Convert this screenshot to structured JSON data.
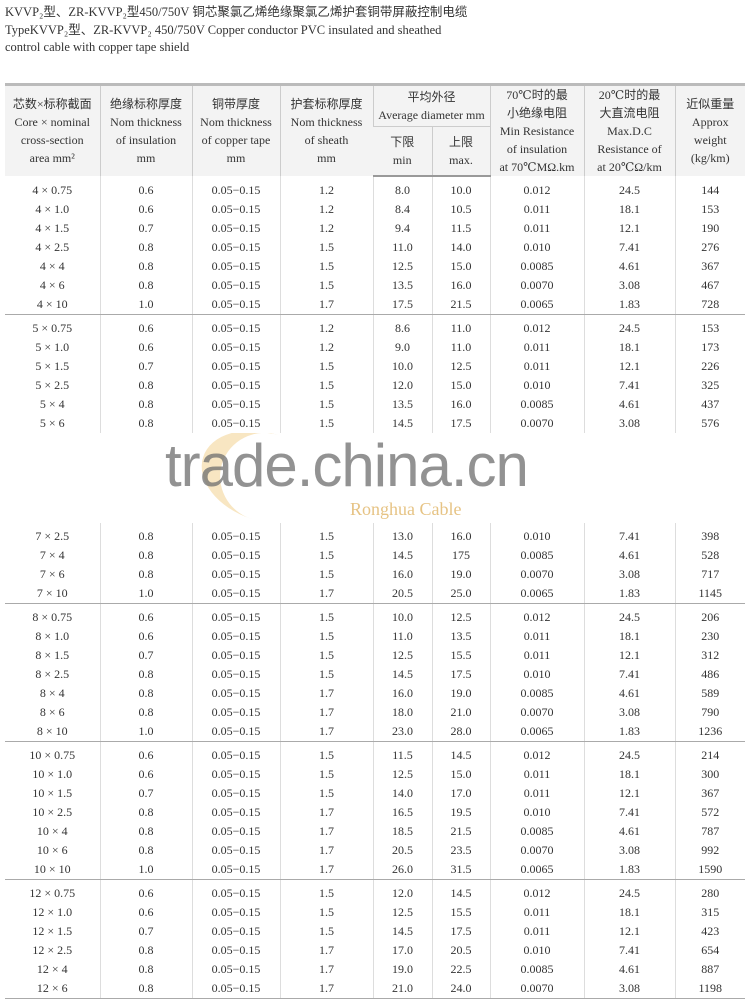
{
  "title_lines": [
    "KVVP₂型、ZR-KVVP₂型450/750V 铜芯聚氯乙烯绝缘聚氯乙烯护套铜带屏蔽控制电缆",
    "TypeKVVP₂型、ZR-KVVP₂ 450/750V Copper conductor PVC insulated and sheathed",
    "control cable with copper tape shield"
  ],
  "headers": {
    "core": [
      "芯数×标称截面",
      "Core × nominal",
      "cross-section",
      "area mm²"
    ],
    "insulation": [
      "绝缘标称厚度",
      "Nom thickness",
      "of insulation",
      "mm"
    ],
    "tape": [
      "铜带厚度",
      "Nom thickness",
      "of copper tape",
      "mm"
    ],
    "sheath": [
      "护套标称厚度",
      "Nom thickness",
      "of sheath",
      "mm"
    ],
    "diameter": [
      "平均外径",
      "Average diameter mm"
    ],
    "min": [
      "下限",
      "min"
    ],
    "max": [
      "上限",
      "max."
    ],
    "resistance_ins": [
      "70℃时的最",
      "小绝缘电阻",
      "Min Resistance",
      "of insulation",
      "at 70℃MΩ.km"
    ],
    "resistance_dc": [
      "20℃时的最",
      "大直流电阻",
      "Max.D.C",
      "Resistance of",
      "at 20℃Ω/km"
    ],
    "weight": [
      "近似重量",
      "Approx",
      "weight",
      "(kg/km)"
    ]
  },
  "groups": [
    [
      [
        "4 × 0.75",
        "0.6",
        "0.05−0.15",
        "1.2",
        "8.0",
        "10.0",
        "0.012",
        "24.5",
        "144"
      ],
      [
        "4 × 1.0",
        "0.6",
        "0.05−0.15",
        "1.2",
        "8.4",
        "10.5",
        "0.011",
        "18.1",
        "153"
      ],
      [
        "4 × 1.5",
        "0.7",
        "0.05−0.15",
        "1.2",
        "9.4",
        "11.5",
        "0.011",
        "12.1",
        "190"
      ],
      [
        "4 × 2.5",
        "0.8",
        "0.05−0.15",
        "1.5",
        "11.0",
        "14.0",
        "0.010",
        "7.41",
        "276"
      ],
      [
        "4 × 4",
        "0.8",
        "0.05−0.15",
        "1.5",
        "12.5",
        "15.0",
        "0.0085",
        "4.61",
        "367"
      ],
      [
        "4 × 6",
        "0.8",
        "0.05−0.15",
        "1.5",
        "13.5",
        "16.0",
        "0.0070",
        "3.08",
        "467"
      ],
      [
        "4 × 10",
        "1.0",
        "0.05−0.15",
        "1.7",
        "17.5",
        "21.5",
        "0.0065",
        "1.83",
        "728"
      ]
    ],
    [
      [
        "5 × 0.75",
        "0.6",
        "0.05−0.15",
        "1.2",
        "8.6",
        "11.0",
        "0.012",
        "24.5",
        "153"
      ],
      [
        "5 × 1.0",
        "0.6",
        "0.05−0.15",
        "1.2",
        "9.0",
        "11.0",
        "0.011",
        "18.1",
        "173"
      ],
      [
        "5 × 1.5",
        "0.7",
        "0.05−0.15",
        "1.5",
        "10.0",
        "12.5",
        "0.011",
        "12.1",
        "226"
      ],
      [
        "5 × 2.5",
        "0.8",
        "0.05−0.15",
        "1.5",
        "12.0",
        "15.0",
        "0.010",
        "7.41",
        "325"
      ],
      [
        "5 × 4",
        "0.8",
        "0.05−0.15",
        "1.5",
        "13.5",
        "16.0",
        "0.0085",
        "4.61",
        "437"
      ],
      [
        "5 × 6",
        "0.8",
        "0.05−0.15",
        "1.5",
        "14.5",
        "17.5",
        "0.0070",
        "3.08",
        "576"
      ]
    ],
    [
      [
        "7 × 2.5",
        "0.8",
        "0.05−0.15",
        "1.5",
        "13.0",
        "16.0",
        "0.010",
        "7.41",
        "398"
      ],
      [
        "7 × 4",
        "0.8",
        "0.05−0.15",
        "1.5",
        "14.5",
        "175",
        "0.0085",
        "4.61",
        "528"
      ],
      [
        "7 × 6",
        "0.8",
        "0.05−0.15",
        "1.5",
        "16.0",
        "19.0",
        "0.0070",
        "3.08",
        "717"
      ],
      [
        "7 × 10",
        "1.0",
        "0.05−0.15",
        "1.7",
        "20.5",
        "25.0",
        "0.0065",
        "1.83",
        "1145"
      ]
    ],
    [
      [
        "8 × 0.75",
        "0.6",
        "0.05−0.15",
        "1.5",
        "10.0",
        "12.5",
        "0.012",
        "24.5",
        "206"
      ],
      [
        "8 × 1.0",
        "0.6",
        "0.05−0.15",
        "1.5",
        "11.0",
        "13.5",
        "0.011",
        "18.1",
        "230"
      ],
      [
        "8 × 1.5",
        "0.7",
        "0.05−0.15",
        "1.5",
        "12.5",
        "15.5",
        "0.011",
        "12.1",
        "312"
      ],
      [
        "8 × 2.5",
        "0.8",
        "0.05−0.15",
        "1.5",
        "14.5",
        "17.5",
        "0.010",
        "7.41",
        "486"
      ],
      [
        "8 × 4",
        "0.8",
        "0.05−0.15",
        "1.7",
        "16.0",
        "19.0",
        "0.0085",
        "4.61",
        "589"
      ],
      [
        "8 × 6",
        "0.8",
        "0.05−0.15",
        "1.7",
        "18.0",
        "21.0",
        "0.0070",
        "3.08",
        "790"
      ],
      [
        "8 × 10",
        "1.0",
        "0.05−0.15",
        "1.7",
        "23.0",
        "28.0",
        "0.0065",
        "1.83",
        "1236"
      ]
    ],
    [
      [
        "10 × 0.75",
        "0.6",
        "0.05−0.15",
        "1.5",
        "11.5",
        "14.5",
        "0.012",
        "24.5",
        "214"
      ],
      [
        "10 × 1.0",
        "0.6",
        "0.05−0.15",
        "1.5",
        "12.5",
        "15.0",
        "0.011",
        "18.1",
        "300"
      ],
      [
        "10 × 1.5",
        "0.7",
        "0.05−0.15",
        "1.5",
        "14.0",
        "17.0",
        "0.011",
        "12.1",
        "367"
      ],
      [
        "10 × 2.5",
        "0.8",
        "0.05−0.15",
        "1.7",
        "16.5",
        "19.5",
        "0.010",
        "7.41",
        "572"
      ],
      [
        "10 × 4",
        "0.8",
        "0.05−0.15",
        "1.7",
        "18.5",
        "21.5",
        "0.0085",
        "4.61",
        "787"
      ],
      [
        "10 × 6",
        "0.8",
        "0.05−0.15",
        "1.7",
        "20.5",
        "23.5",
        "0.0070",
        "3.08",
        "992"
      ],
      [
        "10 × 10",
        "1.0",
        "0.05−0.15",
        "1.7",
        "26.0",
        "31.5",
        "0.0065",
        "1.83",
        "1590"
      ]
    ],
    [
      [
        "12 × 0.75",
        "0.6",
        "0.05−0.15",
        "1.5",
        "12.0",
        "14.5",
        "0.012",
        "24.5",
        "280"
      ],
      [
        "12 × 1.0",
        "0.6",
        "0.05−0.15",
        "1.5",
        "12.5",
        "15.5",
        "0.011",
        "18.1",
        "315"
      ],
      [
        "12 × 1.5",
        "0.7",
        "0.05−0.15",
        "1.5",
        "14.5",
        "17.5",
        "0.011",
        "12.1",
        "423"
      ],
      [
        "12 × 2.5",
        "0.8",
        "0.05−0.15",
        "1.7",
        "17.0",
        "20.5",
        "0.010",
        "7.41",
        "654"
      ],
      [
        "12 × 4",
        "0.8",
        "0.05−0.15",
        "1.7",
        "19.0",
        "22.5",
        "0.0085",
        "4.61",
        "887"
      ],
      [
        "12 × 6",
        "0.8",
        "0.05−0.15",
        "1.7",
        "21.0",
        "24.0",
        "0.0070",
        "3.08",
        "1198"
      ]
    ]
  ],
  "watermark": "trade.china.cn",
  "logo_text": "Ronghua Cable"
}
